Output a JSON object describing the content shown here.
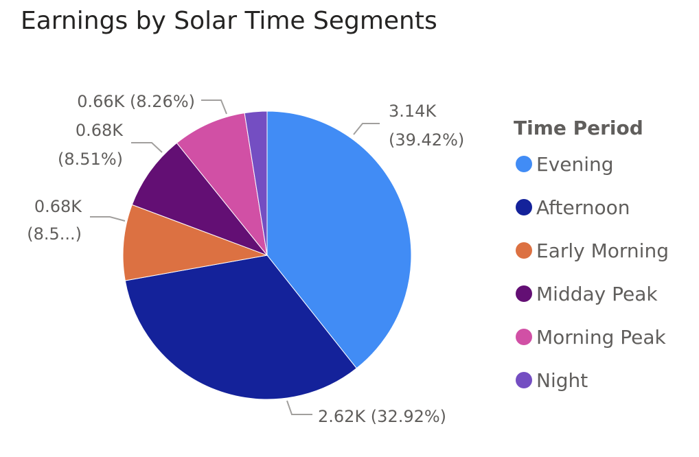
{
  "chart_data": {
    "type": "pie",
    "title": "Earnings by Solar Time Segments",
    "legend_title": "Time Period",
    "legend_position": "right",
    "slices": [
      {
        "name": "Evening",
        "value": 3.14,
        "percent": 39.42,
        "color": "#418cf5",
        "label_lines": [
          "3.14K",
          "(39.42%)"
        ]
      },
      {
        "name": "Afternoon",
        "value": 2.62,
        "percent": 32.92,
        "color": "#14229a",
        "label_lines": [
          "2.62K (32.92%)"
        ]
      },
      {
        "name": "Early Morning",
        "value": 0.68,
        "percent": 8.51,
        "color": "#dc7142",
        "label_lines": [
          "0.68K",
          "(8.5...)"
        ]
      },
      {
        "name": "Midday Peak",
        "value": 0.68,
        "percent": 8.51,
        "color": "#630f74",
        "label_lines": [
          "0.68K",
          "(8.51%)"
        ]
      },
      {
        "name": "Morning Peak",
        "value": 0.66,
        "percent": 8.26,
        "color": "#d150a5",
        "label_lines": [
          "0.66K (8.26%)"
        ]
      },
      {
        "name": "Night",
        "value": 0.2,
        "percent": 2.4,
        "color": "#744ec2",
        "label_lines": []
      }
    ]
  }
}
